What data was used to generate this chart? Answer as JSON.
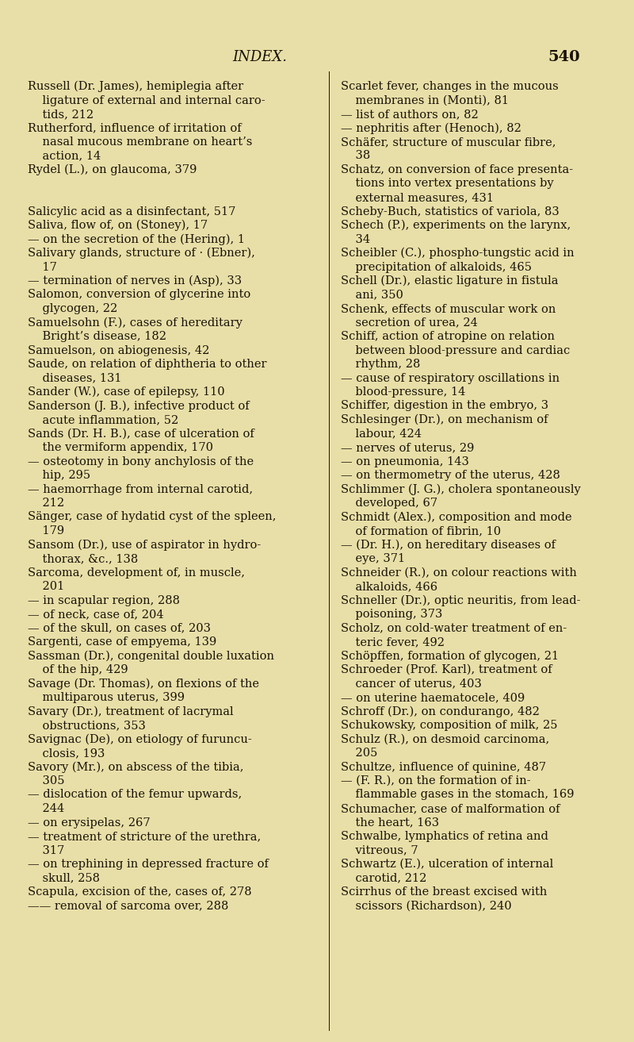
{
  "background_color": "#e8dfa8",
  "header_title": "INDEX.",
  "header_page": "540",
  "header_fontsize": 13,
  "body_fontsize": 10.5,
  "text_color": "#1a1208",
  "left_column_lines": [
    [
      "Russell (Dr. James), hemiplegia after",
      false
    ],
    [
      "    ligature of external and internal caro-",
      false
    ],
    [
      "    tids, 212",
      false
    ],
    [
      "Rutherford, influence of irritation of",
      false
    ],
    [
      "    nasal mucous membrane on heart’s",
      false
    ],
    [
      "    action, 14",
      false
    ],
    [
      "Rydel (L.), on glaucoma, 379",
      false
    ],
    [
      "",
      false
    ],
    [
      "",
      false
    ],
    [
      "Salicylic acid as a disinfectant, 517",
      false
    ],
    [
      "Saliva, flow of, on (Stoney), 17",
      false
    ],
    [
      "— on the secretion of the (Hering), 1",
      false
    ],
    [
      "Salivary glands, structure of · (Ebner),",
      false
    ],
    [
      "    17",
      false
    ],
    [
      "— termination of nerves in (Asp), 33",
      false
    ],
    [
      "Salomon, conversion of glycerine into",
      false
    ],
    [
      "    glycogen, 22",
      false
    ],
    [
      "Samuelsohn (F.), cases of hereditary",
      false
    ],
    [
      "    Bright’s disease, 182",
      false
    ],
    [
      "Samuelson, on abiogenesis, 42",
      false
    ],
    [
      "Saude, on relation of diphtheria to other",
      false
    ],
    [
      "    diseases, 131",
      false
    ],
    [
      "Sander (W.), case of epilepsy, 110",
      false
    ],
    [
      "Sanderson (J. B.), infective product of",
      false
    ],
    [
      "    acute inflammation, 52",
      false
    ],
    [
      "Sands (Dr. H. B.), case of ulceration of",
      false
    ],
    [
      "    the vermiform appendix, 170",
      false
    ],
    [
      "— osteotomy in bony anchylosis of the",
      false
    ],
    [
      "    hip, 295",
      false
    ],
    [
      "— haemorrhage from internal carotid,",
      false
    ],
    [
      "    212",
      false
    ],
    [
      "Sänger, case of hydatid cyst of the spleen,",
      false
    ],
    [
      "    179",
      false
    ],
    [
      "Sansom (Dr.), use of aspirator in hydro-",
      false
    ],
    [
      "    thorax, &c., 138",
      false
    ],
    [
      "Sarcoma, development of, in muscle,",
      false
    ],
    [
      "    201",
      false
    ],
    [
      "— in scapular region, 288",
      false
    ],
    [
      "— of neck, case of, 204",
      false
    ],
    [
      "— of the skull, on cases of, 203",
      false
    ],
    [
      "Sargenti, case of empyema, 139",
      false
    ],
    [
      "Sassman (Dr.), congenital double luxation",
      false
    ],
    [
      "    of the hip, 429",
      false
    ],
    [
      "Savage (Dr. Thomas), on flexions of the",
      false
    ],
    [
      "    multiparous uterus, 399",
      false
    ],
    [
      "Savary (Dr.), treatment of lacrymal",
      false
    ],
    [
      "    obstructions, 353",
      false
    ],
    [
      "Savignac (De), on etiology of furuncu-",
      false
    ],
    [
      "    closis, 193",
      false
    ],
    [
      "Savory (Mr.), on abscess of the tibia,",
      false
    ],
    [
      "    305",
      false
    ],
    [
      "— dislocation of the femur upwards,",
      false
    ],
    [
      "    244",
      false
    ],
    [
      "— on erysipelas, 267",
      false
    ],
    [
      "— treatment of stricture of the urethra,",
      false
    ],
    [
      "    317",
      false
    ],
    [
      "— on trephining in depressed fracture of",
      false
    ],
    [
      "    skull, 258",
      false
    ],
    [
      "Scapula, excision of the, cases of, 278",
      false
    ],
    [
      "—— removal of sarcoma over, 288",
      false
    ]
  ],
  "right_column_lines": [
    [
      "Scarlet fever, changes in the mucous",
      false
    ],
    [
      "    membranes in (Monti), 81",
      false
    ],
    [
      "— list of authors on, 82",
      false
    ],
    [
      "— nephritis after (Henoch), 82",
      false
    ],
    [
      "Schäfer, structure of muscular fibre,",
      false
    ],
    [
      "    38",
      false
    ],
    [
      "Schatz, on conversion of face presenta-",
      false
    ],
    [
      "    tions into vertex presentations by",
      false
    ],
    [
      "    external measures, 431",
      false
    ],
    [
      "Scheby-Buch, statistics of variola, 83",
      false
    ],
    [
      "Schech (P.), experiments on the larynx,",
      false
    ],
    [
      "    34",
      false
    ],
    [
      "Scheibler (C.), phospho-tungstic acid in",
      false
    ],
    [
      "    precipitation of alkaloids, 465",
      false
    ],
    [
      "Schell (Dr.), elastic ligature in fistula",
      false
    ],
    [
      "    ani, 350",
      false
    ],
    [
      "Schenk, effects of muscular work on",
      false
    ],
    [
      "    secretion of urea, 24",
      false
    ],
    [
      "Schiff, action of atropine on relation",
      false
    ],
    [
      "    between blood-pressure and cardiac",
      false
    ],
    [
      "    rhythm, 28",
      false
    ],
    [
      "— cause of respiratory oscillations in",
      false
    ],
    [
      "    blood-pressure, 14",
      false
    ],
    [
      "Schiffer, digestion in the embryo, 3",
      false
    ],
    [
      "Schlesinger (Dr.), on mechanism of",
      false
    ],
    [
      "    labour, 424",
      false
    ],
    [
      "— nerves of uterus, 29",
      false
    ],
    [
      "— on pneumonia, 143",
      false
    ],
    [
      "— on thermometry of the uterus, 428",
      false
    ],
    [
      "Schlimmer (J. G.), cholera spontaneously",
      false
    ],
    [
      "    developed, 67",
      false
    ],
    [
      "Schmidt (Alex.), composition and mode",
      false
    ],
    [
      "    of formation of fibrin, 10",
      false
    ],
    [
      "— (Dr. H.), on hereditary diseases of",
      false
    ],
    [
      "    eye, 371",
      false
    ],
    [
      "Schneider (R.), on colour reactions with",
      false
    ],
    [
      "    alkaloids, 466",
      false
    ],
    [
      "Schneller (Dr.), optic neuritis, from lead-",
      false
    ],
    [
      "    poisoning, 373",
      false
    ],
    [
      "Scholz, on cold-water treatment of en-",
      false
    ],
    [
      "    teric fever, 492",
      false
    ],
    [
      "Schöpffen, formation of ɡlycogen, 21",
      false
    ],
    [
      "Schroeder (Prof. Karl), treatment of",
      false
    ],
    [
      "    cancer of uterus, 403",
      false
    ],
    [
      "— on uterine haematocele, 409",
      false
    ],
    [
      "Schroff (Dr.), on condurango, 482",
      false
    ],
    [
      "Schukowsky, composition of milk, 25",
      false
    ],
    [
      "Schulz (R.), on desmoid carcinoma,",
      false
    ],
    [
      "    205",
      false
    ],
    [
      "Schultze, influence of quinine, 487",
      false
    ],
    [
      "— (F. R.), on the formation of in-",
      false
    ],
    [
      "    flammable gases in the stomach, 169",
      false
    ],
    [
      "Schumacher, case of malformation of",
      false
    ],
    [
      "    the heart, 163",
      false
    ],
    [
      "Schwalbe, lymphatics of retina and",
      false
    ],
    [
      "    vitreous, 7",
      false
    ],
    [
      "Schwartz (E.), ulceration of internal",
      false
    ],
    [
      "    carotid, 212",
      false
    ],
    [
      "Scirrhus of the breast excised with",
      false
    ],
    [
      "    scissors (Richardson), 240",
      false
    ]
  ]
}
